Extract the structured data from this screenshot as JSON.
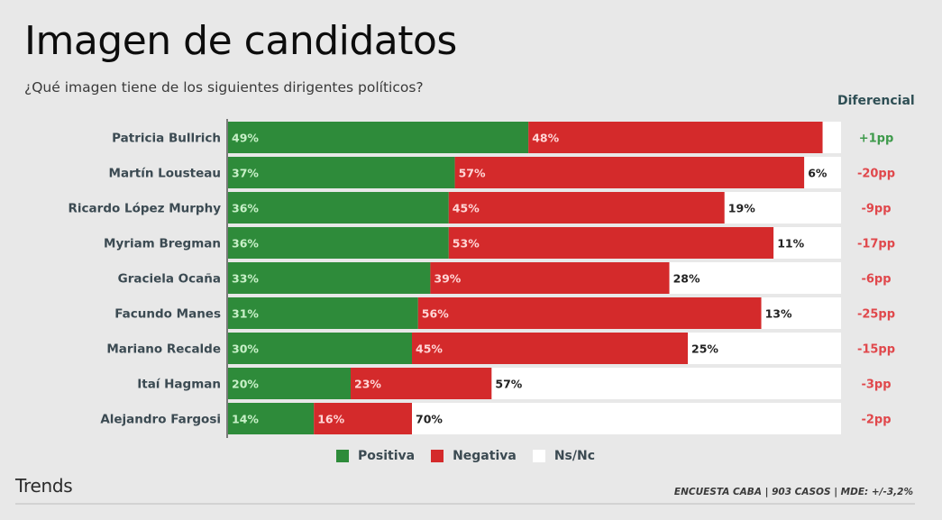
{
  "header": {
    "title": "Imagen de candidatos",
    "subtitle": "¿Qué imagen tiene de los siguientes dirigentes políticos?",
    "differential_header": "Diferencial"
  },
  "footer": {
    "brand": "Trends",
    "note": "ENCUESTA CABA | 903 CASOS | MDE: +/-3,2%"
  },
  "colors": {
    "positive": "#2e8b3a",
    "negative": "#d42a2b",
    "nsnc": "#ffffff",
    "diff_positive": "#3e9a4b",
    "diff_negative": "#e0474b",
    "label_text": "#3b4a52",
    "background": "#e8e8e8"
  },
  "legend": [
    {
      "key": "positive",
      "label": "Positiva"
    },
    {
      "key": "negative",
      "label": "Negativa"
    },
    {
      "key": "nsnc",
      "label": "Ns/Nc"
    }
  ],
  "chart_data": {
    "type": "bar",
    "orientation": "horizontal",
    "stacked": true,
    "title": "Imagen de candidatos",
    "subtitle": "¿Qué imagen tiene de los siguientes dirigentes políticos?",
    "xlabel": "",
    "ylabel": "",
    "xlim": [
      0,
      100
    ],
    "unit": "%",
    "grid": false,
    "legend_position": "bottom",
    "categories": [
      "Patricia Bullrich",
      "Martín Lousteau",
      "Ricardo López Murphy",
      "Myriam Bregman",
      "Graciela Ocaña",
      "Facundo Manes",
      "Mariano Recalde",
      "Itaí Hagman",
      "Alejandro Fargosi"
    ],
    "series": [
      {
        "name": "Positiva",
        "key": "positive",
        "values": [
          49,
          37,
          36,
          36,
          33,
          31,
          30,
          20,
          14
        ]
      },
      {
        "name": "Negativa",
        "key": "negative",
        "values": [
          48,
          57,
          45,
          53,
          39,
          56,
          45,
          23,
          16
        ]
      },
      {
        "name": "Ns/Nc",
        "key": "nsnc",
        "values": [
          3,
          6,
          19,
          11,
          28,
          13,
          25,
          57,
          70
        ]
      }
    ],
    "data_labels": {
      "positive": [
        "49%",
        "37%",
        "36%",
        "36%",
        "33%",
        "31%",
        "30%",
        "20%",
        "14%"
      ],
      "negative": [
        "48%",
        "57%",
        "45%",
        "53%",
        "39%",
        "56%",
        "45%",
        "23%",
        "16%"
      ],
      "nsnc": [
        null,
        "6%",
        "19%",
        "11%",
        "28%",
        "13%",
        "25%",
        "57%",
        "70%"
      ]
    },
    "differential": {
      "header": "Diferencial",
      "values": [
        1,
        -20,
        -9,
        -17,
        -6,
        -25,
        -15,
        -3,
        -2
      ],
      "labels": [
        "+1pp",
        "-20pp",
        "-9pp",
        "-17pp",
        "-6pp",
        "-25pp",
        "-15pp",
        "-3pp",
        "-2pp"
      ]
    }
  }
}
